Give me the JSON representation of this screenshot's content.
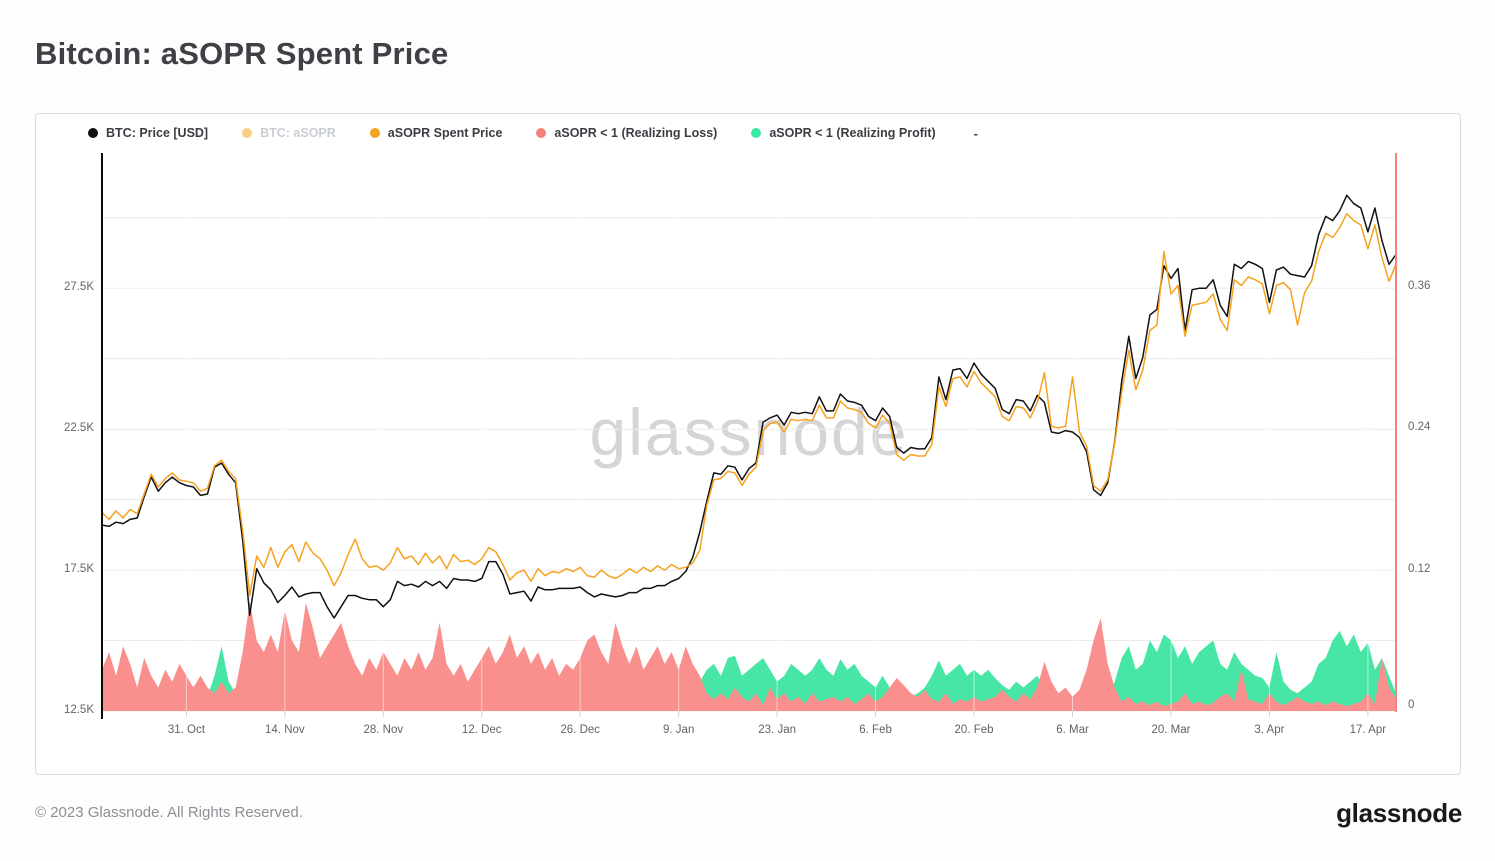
{
  "header": {
    "title": "Bitcoin: aSOPR Spent Price"
  },
  "legend": {
    "items": [
      {
        "label": "BTC: Price [USD]",
        "color": "#111111",
        "disabled": false
      },
      {
        "label": "BTC: aSOPR",
        "color": "#f6a21e",
        "disabled": true
      },
      {
        "label": "aSOPR Spent Price",
        "color": "#f6a21e",
        "disabled": false
      },
      {
        "label": "aSOPR < 1 (Realizing Loss)",
        "color": "#f5817e",
        "disabled": false
      },
      {
        "label": "aSOPR < 1 (Realizing Profit)",
        "color": "#3ce9a4",
        "disabled": false
      }
    ],
    "overflow_indicator": "-"
  },
  "footer": {
    "copyright": "© 2023 Glassnode. All Rights Reserved.",
    "logo": "glassnode"
  },
  "chart_data": {
    "type": "line",
    "title": "Bitcoin: aSOPR Spent Price",
    "watermark": "glassnode",
    "days_total": 184,
    "x_ticks": [
      {
        "day": 12,
        "label": "31. Oct"
      },
      {
        "day": 26,
        "label": "14. Nov"
      },
      {
        "day": 40,
        "label": "28. Nov"
      },
      {
        "day": 54,
        "label": "12. Dec"
      },
      {
        "day": 68,
        "label": "26. Dec"
      },
      {
        "day": 82,
        "label": "9. Jan"
      },
      {
        "day": 96,
        "label": "23. Jan"
      },
      {
        "day": 110,
        "label": "6. Feb"
      },
      {
        "day": 124,
        "label": "20. Feb"
      },
      {
        "day": 138,
        "label": "6. Mar"
      },
      {
        "day": 152,
        "label": "20. Mar"
      },
      {
        "day": 166,
        "label": "3. Apr"
      },
      {
        "day": 180,
        "label": "17. Apr"
      }
    ],
    "left_axis": {
      "unit": "USD",
      "min": 12.5,
      "max": 32.3,
      "gridline_values": [
        30,
        27.5,
        25,
        22.5,
        20,
        17.5,
        15,
        12.5
      ],
      "tick_labels": [
        {
          "value": 27.5,
          "label": "27.5K"
        },
        {
          "value": 22.5,
          "label": "22.5K"
        },
        {
          "value": 17.5,
          "label": "17.5K"
        },
        {
          "value": 12.5,
          "label": "12.5K"
        }
      ]
    },
    "right_axis": {
      "unit": "aSOPR share",
      "min": 0,
      "max": 0.474,
      "axis_color": "#f8817a",
      "tick_labels": [
        {
          "value": 0.36,
          "label": "0.36"
        },
        {
          "value": 0.24,
          "label": "0.24"
        },
        {
          "value": 0.12,
          "label": "0.12"
        },
        {
          "value": 0,
          "label": "0"
        }
      ]
    },
    "series": [
      {
        "name": "aSOPR < 1 (Realizing Profit)",
        "type": "area",
        "axis": "right",
        "color": "#47e6a6",
        "interval_days": 1,
        "values": [
          0.008,
          0.005,
          0.008,
          0.005,
          0.01,
          0.012,
          0.02,
          0.025,
          0.015,
          0.018,
          0.022,
          0.015,
          0.012,
          0.01,
          0.008,
          0.012,
          0.03,
          0.055,
          0.025,
          0.015,
          0.008,
          0.004,
          0.01,
          0.006,
          0.008,
          0.005,
          0.008,
          0.01,
          0.006,
          0.008,
          0.02,
          0.01,
          0.006,
          0.004,
          0.008,
          0.006,
          0.01,
          0.008,
          0.006,
          0.008,
          0.005,
          0.008,
          0.012,
          0.008,
          0.006,
          0.01,
          0.008,
          0.006,
          0.01,
          0.006,
          0.008,
          0.01,
          0.006,
          0.008,
          0.01,
          0.015,
          0.012,
          0.008,
          0.006,
          0.008,
          0.006,
          0.005,
          0.008,
          0.006,
          0.008,
          0.006,
          0.008,
          0.006,
          0.008,
          0.005,
          0.006,
          0.008,
          0.006,
          0.008,
          0.006,
          0.008,
          0.01,
          0.008,
          0.012,
          0.01,
          0.012,
          0.015,
          0.012,
          0.018,
          0.02,
          0.025,
          0.035,
          0.04,
          0.03,
          0.045,
          0.047,
          0.03,
          0.035,
          0.04,
          0.045,
          0.035,
          0.025,
          0.03,
          0.04,
          0.035,
          0.03,
          0.035,
          0.045,
          0.035,
          0.03,
          0.044,
          0.035,
          0.04,
          0.03,
          0.025,
          0.02,
          0.03,
          0.02,
          0.012,
          0.008,
          0.012,
          0.015,
          0.02,
          0.03,
          0.043,
          0.03,
          0.035,
          0.04,
          0.03,
          0.035,
          0.03,
          0.035,
          0.028,
          0.022,
          0.018,
          0.025,
          0.02,
          0.025,
          0.03,
          0.02,
          0.012,
          0.015,
          0.01,
          0.012,
          0.008,
          0.006,
          0.004,
          0.005,
          0.008,
          0.025,
          0.045,
          0.055,
          0.035,
          0.04,
          0.06,
          0.05,
          0.065,
          0.06,
          0.045,
          0.055,
          0.04,
          0.05,
          0.055,
          0.06,
          0.04,
          0.035,
          0.05,
          0.04,
          0.035,
          0.03,
          0.028,
          0.02,
          0.05,
          0.025,
          0.018,
          0.015,
          0.02,
          0.025,
          0.04,
          0.045,
          0.06,
          0.068,
          0.055,
          0.065,
          0.05,
          0.058,
          0.035,
          0.045,
          0.03,
          0.015
        ]
      },
      {
        "name": "aSOPR < 1 (Realizing Loss)",
        "type": "area",
        "axis": "right",
        "color": "#f9908e",
        "interval_days": 1,
        "values": [
          0.035,
          0.05,
          0.03,
          0.055,
          0.04,
          0.02,
          0.045,
          0.03,
          0.02,
          0.035,
          0.025,
          0.04,
          0.03,
          0.02,
          0.03,
          0.02,
          0.015,
          0.025,
          0.015,
          0.02,
          0.05,
          0.093,
          0.06,
          0.05,
          0.065,
          0.05,
          0.085,
          0.06,
          0.05,
          0.092,
          0.07,
          0.045,
          0.055,
          0.065,
          0.075,
          0.055,
          0.04,
          0.03,
          0.045,
          0.035,
          0.05,
          0.04,
          0.03,
          0.045,
          0.035,
          0.05,
          0.035,
          0.045,
          0.075,
          0.04,
          0.03,
          0.04,
          0.025,
          0.035,
          0.045,
          0.055,
          0.04,
          0.05,
          0.065,
          0.045,
          0.055,
          0.04,
          0.05,
          0.035,
          0.045,
          0.03,
          0.04,
          0.035,
          0.045,
          0.06,
          0.065,
          0.05,
          0.04,
          0.075,
          0.055,
          0.04,
          0.055,
          0.035,
          0.045,
          0.055,
          0.04,
          0.05,
          0.035,
          0.055,
          0.04,
          0.03,
          0.015,
          0.01,
          0.015,
          0.01,
          0.02,
          0.012,
          0.008,
          0.015,
          0.005,
          0.02,
          0.01,
          0.015,
          0.008,
          0.012,
          0.006,
          0.015,
          0.008,
          0.01,
          0.012,
          0.008,
          0.012,
          0.006,
          0.01,
          0.015,
          0.008,
          0.012,
          0.02,
          0.028,
          0.022,
          0.015,
          0.012,
          0.018,
          0.01,
          0.008,
          0.015,
          0.006,
          0.01,
          0.008,
          0.012,
          0.008,
          0.01,
          0.012,
          0.018,
          0.012,
          0.008,
          0.015,
          0.01,
          0.02,
          0.042,
          0.025,
          0.015,
          0.02,
          0.012,
          0.018,
          0.035,
          0.06,
          0.079,
          0.04,
          0.02,
          0.008,
          0.012,
          0.006,
          0.008,
          0.005,
          0.008,
          0.004,
          0.006,
          0.008,
          0.015,
          0.006,
          0.008,
          0.005,
          0.007,
          0.012,
          0.015,
          0.008,
          0.035,
          0.01,
          0.008,
          0.006,
          0.015,
          0.008,
          0.005,
          0.008,
          0.012,
          0.008,
          0.006,
          0.008,
          0.005,
          0.008,
          0.006,
          0.004,
          0.006,
          0.008,
          0.015,
          0.006,
          0.045,
          0.02,
          0.01
        ]
      },
      {
        "name": "BTC: Price [USD]",
        "type": "line",
        "axis": "left",
        "color": "#111111",
        "unit": "K USD",
        "interval_days": 1,
        "values": [
          19.1,
          19.05,
          19.2,
          19.15,
          19.3,
          19.35,
          20.1,
          20.8,
          20.3,
          20.6,
          20.8,
          20.6,
          20.5,
          20.45,
          20.15,
          20.2,
          21.15,
          21.3,
          20.9,
          20.6,
          18.55,
          15.9,
          17.55,
          17.05,
          16.8,
          16.35,
          16.6,
          16.9,
          16.55,
          16.65,
          16.7,
          16.7,
          16.2,
          15.8,
          16.2,
          16.6,
          16.6,
          16.5,
          16.45,
          16.45,
          16.2,
          16.45,
          17.1,
          16.95,
          17.0,
          16.9,
          17.1,
          16.95,
          17.1,
          16.85,
          17.2,
          17.15,
          17.15,
          17.1,
          17.2,
          17.8,
          17.8,
          17.35,
          16.65,
          16.7,
          16.75,
          16.4,
          16.9,
          16.8,
          16.8,
          16.85,
          16.85,
          16.85,
          16.9,
          16.7,
          16.55,
          16.65,
          16.6,
          16.55,
          16.6,
          16.7,
          16.7,
          16.85,
          16.85,
          16.95,
          16.95,
          17.1,
          17.2,
          17.45,
          17.95,
          18.85,
          19.95,
          20.95,
          20.9,
          21.2,
          21.15,
          20.7,
          21.1,
          21.3,
          22.75,
          22.9,
          23.0,
          22.65,
          23.1,
          23.05,
          23.1,
          23.05,
          23.65,
          23.15,
          23.15,
          23.75,
          23.5,
          23.45,
          23.35,
          22.95,
          22.8,
          23.25,
          22.95,
          21.85,
          21.65,
          21.85,
          21.8,
          21.8,
          22.2,
          24.35,
          23.55,
          24.6,
          24.65,
          24.3,
          24.85,
          24.45,
          24.2,
          23.95,
          23.2,
          23.05,
          23.55,
          23.5,
          23.15,
          23.7,
          23.45,
          22.4,
          22.35,
          22.45,
          22.4,
          22.2,
          21.7,
          20.35,
          20.15,
          20.6,
          22.05,
          24.2,
          25.8,
          24.3,
          25.05,
          26.55,
          26.75,
          28.3,
          27.85,
          28.2,
          26.0,
          27.45,
          27.5,
          27.5,
          27.8,
          26.9,
          26.5,
          28.35,
          28.2,
          28.45,
          28.35,
          28.2,
          27.0,
          28.15,
          28.25,
          28.0,
          27.95,
          27.9,
          28.3,
          29.4,
          30.05,
          29.9,
          30.25,
          30.8,
          30.5,
          30.35,
          29.5,
          30.35,
          29.2,
          28.35,
          28.7
        ]
      },
      {
        "name": "aSOPR Spent Price",
        "type": "line",
        "axis": "left",
        "color": "#f6a21e",
        "unit": "K USD",
        "interval_days": 1,
        "values": [
          19.55,
          19.3,
          19.6,
          19.35,
          19.65,
          19.5,
          20.2,
          20.9,
          20.45,
          20.75,
          20.95,
          20.7,
          20.65,
          20.6,
          20.3,
          20.4,
          21.2,
          21.4,
          21.0,
          20.75,
          18.9,
          16.6,
          18.0,
          17.6,
          18.3,
          17.6,
          18.15,
          18.4,
          17.8,
          18.5,
          18.1,
          17.9,
          17.5,
          16.95,
          17.4,
          18.05,
          18.6,
          17.9,
          17.6,
          17.65,
          17.5,
          17.75,
          18.3,
          17.9,
          18.0,
          17.7,
          18.1,
          17.75,
          18.0,
          17.55,
          18.05,
          17.8,
          17.85,
          17.7,
          17.9,
          18.3,
          18.15,
          17.7,
          17.15,
          17.4,
          17.5,
          17.1,
          17.55,
          17.3,
          17.45,
          17.4,
          17.55,
          17.45,
          17.6,
          17.3,
          17.25,
          17.5,
          17.3,
          17.2,
          17.35,
          17.55,
          17.4,
          17.6,
          17.45,
          17.65,
          17.5,
          17.7,
          17.55,
          17.6,
          17.75,
          18.2,
          19.8,
          20.7,
          20.75,
          21.0,
          20.95,
          20.5,
          20.9,
          21.15,
          22.45,
          22.7,
          22.75,
          22.4,
          22.85,
          22.8,
          22.85,
          22.8,
          23.35,
          22.9,
          22.9,
          23.5,
          23.25,
          23.2,
          23.1,
          22.7,
          22.55,
          23.0,
          22.7,
          21.6,
          21.4,
          21.6,
          21.55,
          21.55,
          21.95,
          24.0,
          23.3,
          24.3,
          24.35,
          24.0,
          24.55,
          24.15,
          23.9,
          23.65,
          22.95,
          22.8,
          23.3,
          23.25,
          22.9,
          23.45,
          24.5,
          22.6,
          22.55,
          22.6,
          24.35,
          22.4,
          21.9,
          20.5,
          20.3,
          20.7,
          22.0,
          23.8,
          25.3,
          23.9,
          24.6,
          26.0,
          26.2,
          28.8,
          27.3,
          27.6,
          25.8,
          26.9,
          26.95,
          27.0,
          27.3,
          26.4,
          26.0,
          27.8,
          27.6,
          27.9,
          27.8,
          27.65,
          26.6,
          27.6,
          27.7,
          27.45,
          26.2,
          27.35,
          27.75,
          28.8,
          29.45,
          29.3,
          29.65,
          30.15,
          29.9,
          29.75,
          28.9,
          29.75,
          28.6,
          27.75,
          28.35
        ]
      }
    ]
  }
}
